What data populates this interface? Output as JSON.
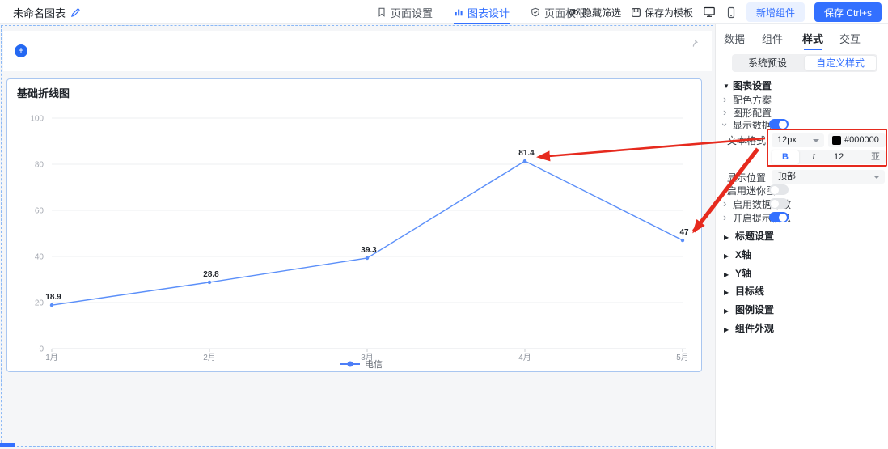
{
  "header": {
    "title": "未命名图表",
    "nav_tabs": [
      {
        "label": "页面设置"
      },
      {
        "label": "图表设计"
      },
      {
        "label": "页面权限"
      }
    ],
    "active_nav_tab": "图表设计",
    "actions": {
      "hide_filter": "隐藏筛选",
      "save_as_template": "保存为模板",
      "add_component": "新增组件",
      "save": "保存 Ctrl+s"
    }
  },
  "chart_data": {
    "type": "line",
    "title": "基础折线图",
    "categories": [
      "1月",
      "2月",
      "3月",
      "4月",
      "5月"
    ],
    "series": [
      {
        "name": "电信",
        "values": [
          18.9,
          28.8,
          39.3,
          81.4,
          47
        ]
      }
    ],
    "xlabel": "",
    "ylabel": "",
    "ylim": [
      0,
      100
    ],
    "yticks": [
      0,
      20,
      40,
      60,
      80,
      100
    ],
    "grid": true,
    "legend_position": "bottom",
    "line_color": "#5B8FF9",
    "point_label_color": "#1f2329"
  },
  "panel": {
    "tabs": [
      {
        "label": "数据"
      },
      {
        "label": "组件"
      },
      {
        "label": "样式"
      },
      {
        "label": "交互"
      }
    ],
    "active_tab": "样式",
    "segments": [
      {
        "label": "系统预设"
      },
      {
        "label": "自定义样式"
      }
    ],
    "active_segment": "自定义样式",
    "chart_settings_label": "图表设置",
    "rows": {
      "color_scheme": "配色方案",
      "shape_config": "图形配置",
      "show_data": "显示数据",
      "show_data_on": true,
      "text_format": "文本格式",
      "display_position": "显示位置",
      "display_position_value": "顶部",
      "mini_chart": "启用迷你图",
      "mini_chart_on": false,
      "data_zoom": "启用数据缩放",
      "data_zoom_on": false,
      "tooltip": "开启提示信息",
      "tooltip_on": true
    },
    "text_format": {
      "font_size": "12px",
      "color_hex": "#000000",
      "bold": "B",
      "italic": "I",
      "spacing": "12",
      "spacing_icon": "亚"
    },
    "sections": [
      {
        "label": "标题设置"
      },
      {
        "label": "X轴"
      },
      {
        "label": "Y轴"
      },
      {
        "label": "目标线"
      },
      {
        "label": "图例设置"
      },
      {
        "label": "组件外观"
      }
    ]
  },
  "annotation": {
    "color": "#e62a1e"
  },
  "colors": {
    "accent": "#3370ff",
    "canvas_bg": "#f5f6f8"
  }
}
